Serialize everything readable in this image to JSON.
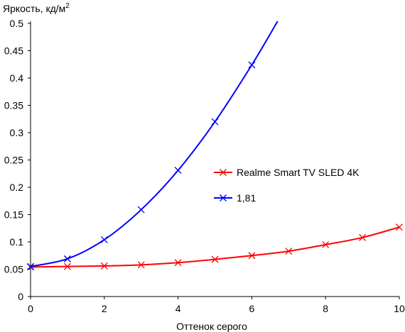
{
  "chart_data": {
    "type": "line",
    "title": "",
    "ylabel": "Яркость, кд/м",
    "ylabel_sup": "2",
    "xlabel": "Оттенок серого",
    "xlim": [
      0,
      10
    ],
    "ylim": [
      0,
      0.5
    ],
    "xticks": [
      0,
      2,
      4,
      6,
      8,
      10
    ],
    "xtick_labels": [
      "0",
      "2",
      "4",
      "6",
      "8",
      "10"
    ],
    "yticks": [
      0,
      0.05,
      0.1,
      0.15,
      0.2,
      0.25,
      0.3,
      0.35,
      0.4,
      0.45,
      0.5
    ],
    "ytick_labels": [
      "0",
      "0.05",
      "0.1",
      "0.15",
      "0.2",
      "0.25",
      "0.3",
      "0.35",
      "0.4",
      "0.45",
      "0.5"
    ],
    "grid": false,
    "legend_position": "center-right",
    "series": [
      {
        "name": "Realme Smart TV SLED 4K",
        "color": "#ff0000",
        "marker": "x",
        "x": [
          0,
          1,
          2,
          3,
          4,
          5,
          6,
          7,
          8,
          9,
          10
        ],
        "y": [
          0.054,
          0.055,
          0.056,
          0.058,
          0.062,
          0.068,
          0.075,
          0.083,
          0.095,
          0.108,
          0.127
        ]
      },
      {
        "name": "1,81",
        "color": "#0000ff",
        "marker": "x",
        "x": [
          0,
          1,
          2,
          3,
          4,
          5,
          6,
          6.7
        ],
        "y": [
          0.055,
          0.069,
          0.104,
          0.159,
          0.231,
          0.32,
          0.424,
          0.504
        ],
        "markers": [
          true,
          true,
          true,
          true,
          true,
          true,
          true,
          false
        ]
      }
    ]
  }
}
